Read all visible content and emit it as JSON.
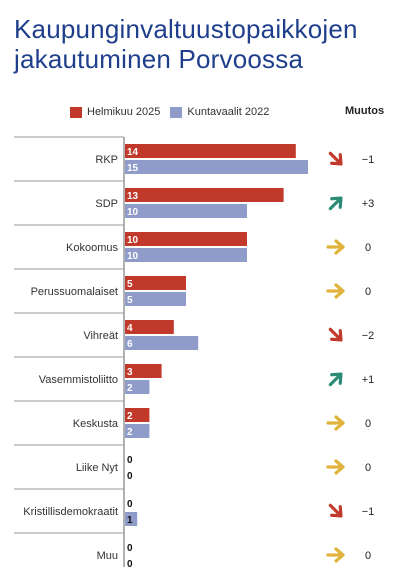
{
  "title": "Kaupunginvaltuustopaikkojen jakautuminen Porvoossa",
  "change_header": "Muutos",
  "colors": {
    "current": "#c0392b",
    "previous": "#8f9bc8",
    "arrow_up": "#2e8b75",
    "arrow_down": "#c0392b",
    "arrow_same": "#e2b33c"
  },
  "chart_data": {
    "type": "bar",
    "orientation": "horizontal",
    "categories": [
      "RKP",
      "SDP",
      "Kokoomus",
      "Perussuomalaiset",
      "Vihreät",
      "Vasemmistoliitto",
      "Keskusta",
      "Liike Nyt",
      "Kristillisdemokraatit",
      "Muu"
    ],
    "series": [
      {
        "name": "Helmikuu 2025",
        "values": [
          14,
          13,
          10,
          5,
          4,
          3,
          2,
          0,
          0,
          0
        ]
      },
      {
        "name": "Kuntavaalit 2022",
        "values": [
          15,
          10,
          10,
          5,
          6,
          2,
          2,
          0,
          1,
          0
        ]
      }
    ],
    "change": [
      "−1",
      "+3",
      "0",
      "0",
      "−2",
      "+1",
      "0",
      "0",
      "−1",
      "0"
    ],
    "change_direction": [
      "down",
      "up",
      "same",
      "same",
      "down",
      "up",
      "same",
      "same",
      "down",
      "same"
    ],
    "legend_position": "top",
    "data_labels": true,
    "grid": false
  }
}
